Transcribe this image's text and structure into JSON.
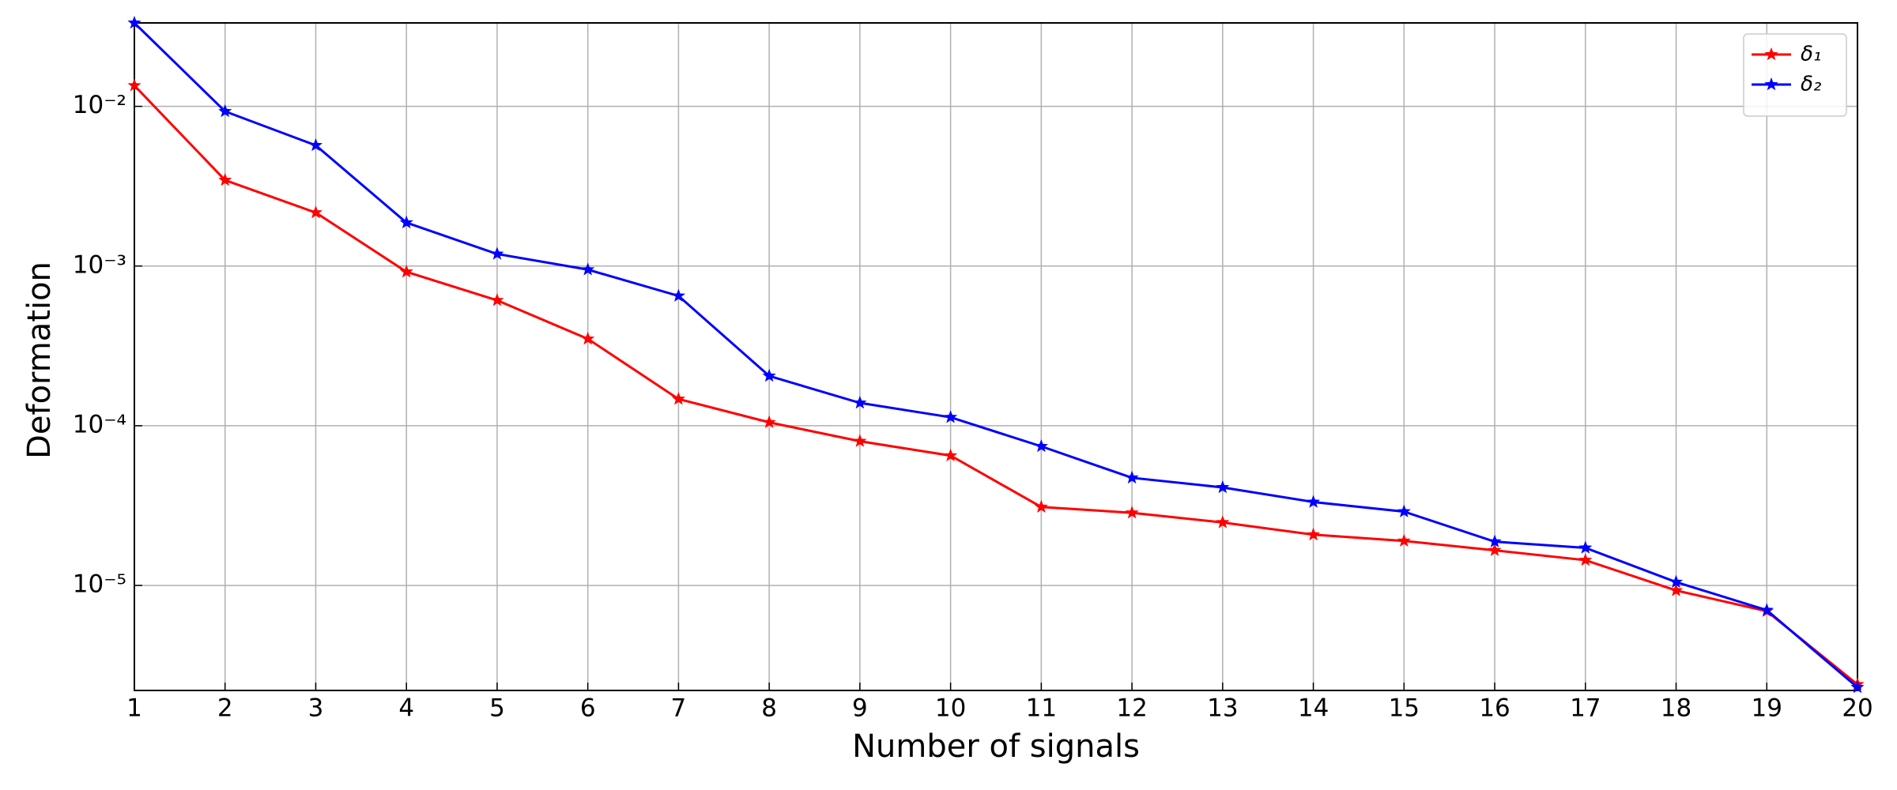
{
  "chart_data": {
    "type": "line",
    "xlabel": "Number of signals",
    "ylabel": "Deformation",
    "x": [
      1,
      2,
      3,
      4,
      5,
      6,
      7,
      8,
      9,
      10,
      11,
      12,
      13,
      14,
      15,
      16,
      17,
      18,
      19,
      20
    ],
    "series": [
      {
        "name": "δ₁",
        "color": "#ff0000",
        "values": [
          0.0135,
          0.00345,
          0.00216,
          0.00092,
          0.00061,
          0.00035,
          0.000147,
          0.000105,
          8e-05,
          6.5e-05,
          3.1e-05,
          2.85e-05,
          2.48e-05,
          2.08e-05,
          1.9e-05,
          1.66e-05,
          1.44e-05,
          9.3e-06,
          6.9e-06,
          2.4e-06
        ]
      },
      {
        "name": "δ₂",
        "color": "#0000ff",
        "values": [
          0.0333,
          0.0093,
          0.0057,
          0.00187,
          0.00119,
          0.00095,
          0.00065,
          0.000205,
          0.000139,
          0.000113,
          7.43e-05,
          4.72e-05,
          4.11e-05,
          3.33e-05,
          2.9e-05,
          1.88e-05,
          1.72e-05,
          1.05e-05,
          7e-06,
          2.3e-06
        ]
      }
    ],
    "xlim": [
      1,
      20
    ],
    "xticks": [
      1,
      2,
      3,
      4,
      5,
      6,
      7,
      8,
      9,
      10,
      11,
      12,
      13,
      14,
      15,
      16,
      17,
      18,
      19,
      20
    ],
    "ylim": [
      2.2e-06,
      0.0333
    ],
    "log_y": true,
    "yticks": [
      {
        "value": 0.01,
        "label": "10⁻²"
      },
      {
        "value": 0.001,
        "label": "10⁻³"
      },
      {
        "value": 0.0001,
        "label": "10⁻⁴"
      },
      {
        "value": 1e-05,
        "label": "10⁻⁵"
      }
    ],
    "grid": true,
    "legend": "upper right",
    "marker": "star"
  }
}
